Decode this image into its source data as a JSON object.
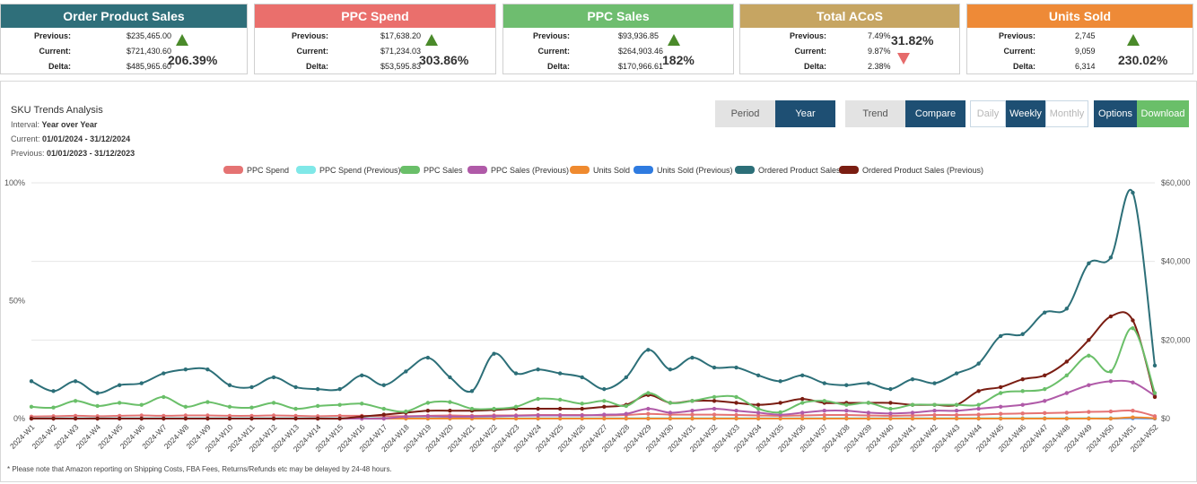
{
  "kpis": [
    {
      "title": "Order Product Sales",
      "color": "#2f6f7a",
      "previous": "$235,465.00",
      "current": "$721,430.60",
      "delta": "$485,965.60",
      "pct": "206.39%",
      "trend": "up"
    },
    {
      "title": "PPC Spend",
      "color": "#ea6f6c",
      "previous": "$17,638.20",
      "current": "$71,234.03",
      "delta": "$53,595.83",
      "pct": "303.86%",
      "trend": "up"
    },
    {
      "title": "PPC Sales",
      "color": "#6ebd6f",
      "previous": "$93,936.85",
      "current": "$264,903.46",
      "delta": "$170,966.61",
      "pct": "182%",
      "trend": "up"
    },
    {
      "title": "Total ACoS",
      "color": "#c6a562",
      "previous": "7.49%",
      "current": "9.87%",
      "delta": "2.38%",
      "pct": "31.82%",
      "trend": "down"
    },
    {
      "title": "Units Sold",
      "color": "#ee8a37",
      "previous": "2,745",
      "current": "9,059",
      "delta": "6,314",
      "pct": "230.02%",
      "trend": "up"
    }
  ],
  "labels": {
    "previous": "Previous:",
    "current": "Current:",
    "delta": "Delta:"
  },
  "panel": {
    "title": "SKU Trends Analysis",
    "interval_label": "Interval:",
    "interval": "Year over Year",
    "current_label": "Current:",
    "current_range": "01/01/2024 - 31/12/2024",
    "previous_label": "Previous:",
    "previous_range": "01/01/2023 - 31/12/2023",
    "note": "* Please note that Amazon reporting on Shipping Costs, FBA Fees, Returns/Refunds etc may be delayed by 24-48 hours."
  },
  "buttons": {
    "period": "Period",
    "year": "Year",
    "trend": "Trend",
    "compare": "Compare",
    "daily": "Daily",
    "weekly": "Weekly",
    "monthly": "Monthly",
    "options": "Options",
    "download": "Download"
  },
  "chart_data": {
    "type": "line",
    "categories": [
      "2024-W1",
      "2024-W2",
      "2024-W3",
      "2024-W4",
      "2024-W5",
      "2024-W6",
      "2024-W7",
      "2024-W8",
      "2024-W9",
      "2024-W10",
      "2024-W11",
      "2024-W12",
      "2024-W13",
      "2024-W14",
      "2024-W15",
      "2024-W16",
      "2024-W17",
      "2024-W18",
      "2024-W19",
      "2024-W20",
      "2024-W21",
      "2024-W22",
      "2024-W23",
      "2024-W24",
      "2024-W25",
      "2024-W26",
      "2024-W27",
      "2024-W28",
      "2024-W29",
      "2024-W30",
      "2024-W31",
      "2024-W32",
      "2024-W33",
      "2024-W34",
      "2024-W35",
      "2024-W36",
      "2024-W37",
      "2024-W38",
      "2024-W39",
      "2024-W40",
      "2024-W41",
      "2024-W42",
      "2024-W43",
      "2024-W44",
      "2024-W45",
      "2024-W46",
      "2024-W47",
      "2024-W48",
      "2024-W49",
      "2024-W50",
      "2024-W51",
      "2024-W52"
    ],
    "y_left": {
      "ticks": [
        "0%",
        "50%",
        "100%"
      ],
      "max": 100
    },
    "y_right": {
      "ticks": [
        "$0",
        "$20,000",
        "$40,000",
        "$60,000"
      ],
      "max": 60000
    },
    "series": [
      {
        "name": "PPC Spend",
        "color": "#e57373",
        "values": [
          500,
          600,
          700,
          600,
          700,
          800,
          700,
          800,
          800,
          700,
          700,
          800,
          700,
          600,
          700,
          700,
          600,
          600,
          700,
          800,
          700,
          800,
          800,
          900,
          900,
          900,
          800,
          900,
          1200,
          1000,
          1000,
          1000,
          900,
          800,
          700,
          800,
          900,
          900,
          800,
          700,
          800,
          900,
          900,
          1000,
          1200,
          1300,
          1400,
          1500,
          1700,
          1800,
          2000,
          600
        ]
      },
      {
        "name": "PPC Spend (Previous)",
        "color": "#80e8e8",
        "values": [
          100,
          100,
          100,
          100,
          100,
          100,
          100,
          100,
          100,
          100,
          100,
          100,
          100,
          100,
          100,
          100,
          100,
          100,
          100,
          100,
          100,
          100,
          100,
          100,
          100,
          100,
          100,
          100,
          100,
          100,
          100,
          100,
          100,
          100,
          100,
          100,
          100,
          100,
          100,
          100,
          100,
          100,
          100,
          100,
          100,
          100,
          100,
          100,
          100,
          100,
          200,
          100
        ]
      },
      {
        "name": "PPC Sales",
        "color": "#6abf69",
        "values": [
          3000,
          2800,
          4500,
          3200,
          4000,
          3500,
          5500,
          3000,
          4200,
          3000,
          2800,
          4000,
          2500,
          3200,
          3500,
          3800,
          2500,
          1800,
          4000,
          4200,
          2500,
          2500,
          3000,
          5000,
          4800,
          3800,
          4500,
          3200,
          6500,
          4000,
          4500,
          5500,
          5500,
          2500,
          1600,
          4000,
          4500,
          3500,
          4000,
          2500,
          3500,
          3500,
          3500,
          3500,
          6500,
          7000,
          7500,
          11000,
          16000,
          12000,
          23000,
          6500
        ]
      },
      {
        "name": "PPC Sales (Previous)",
        "color": "#b05aa8",
        "values": [
          0,
          0,
          0,
          0,
          0,
          0,
          0,
          0,
          0,
          0,
          0,
          0,
          0,
          0,
          0,
          0,
          0,
          500,
          600,
          500,
          500,
          600,
          700,
          800,
          800,
          800,
          1000,
          1200,
          2500,
          1500,
          2000,
          2500,
          2000,
          1500,
          1000,
          1500,
          2000,
          2000,
          1500,
          1300,
          1500,
          2000,
          2000,
          2500,
          3000,
          3500,
          4500,
          6500,
          8500,
          9500,
          9200,
          5800
        ]
      },
      {
        "name": "Units Sold",
        "color": "#ef8a2f",
        "values": [
          0,
          0,
          0,
          0,
          0,
          0,
          0,
          0,
          0,
          0,
          0,
          0,
          0,
          0,
          0,
          0,
          0,
          0,
          0,
          0,
          0,
          0,
          0,
          0,
          0,
          0,
          0,
          0,
          0,
          0,
          0,
          0,
          0,
          0,
          0,
          0,
          0,
          0,
          0,
          0,
          0,
          0,
          0,
          0,
          0,
          0,
          0,
          0,
          0,
          0,
          300,
          100
        ]
      },
      {
        "name": "Units Sold (Previous)",
        "color": "#2f7be0",
        "values": [
          0,
          0,
          0,
          0,
          0,
          0,
          0,
          0,
          0,
          0,
          0,
          0,
          0,
          0,
          0,
          0,
          0,
          0,
          0,
          0,
          0,
          0,
          0,
          0,
          0,
          0,
          0,
          0,
          0,
          0,
          0,
          0,
          0,
          0,
          0,
          0,
          0,
          0,
          0,
          0,
          0,
          0,
          0,
          0,
          0,
          0,
          0,
          0,
          0,
          0,
          100,
          0
        ]
      },
      {
        "name": "Ordered Product Sales",
        "color": "#2c6f78",
        "values": [
          9500,
          7000,
          9500,
          6500,
          8500,
          9000,
          11500,
          12500,
          12500,
          8500,
          8000,
          10500,
          8000,
          7500,
          7500,
          11000,
          8500,
          12000,
          15500,
          10500,
          7000,
          16500,
          11500,
          12500,
          11500,
          10500,
          7500,
          10500,
          17500,
          12500,
          15500,
          13000,
          13000,
          11000,
          9500,
          11000,
          9000,
          8500,
          9000,
          7500,
          10000,
          9000,
          11500,
          14000,
          21000,
          21500,
          27000,
          28000,
          39500,
          41000,
          57500,
          13500
        ]
      },
      {
        "name": "Ordered Product Sales (Previous)",
        "color": "#7a1d12",
        "values": [
          0,
          0,
          0,
          0,
          0,
          0,
          0,
          0,
          0,
          0,
          0,
          0,
          0,
          0,
          0,
          500,
          1000,
          1500,
          2000,
          2000,
          2000,
          2200,
          2500,
          2500,
          2500,
          2500,
          3000,
          3500,
          6000,
          4000,
          4500,
          4500,
          4000,
          3500,
          4000,
          5000,
          4000,
          4000,
          4000,
          4000,
          3500,
          3500,
          3500,
          7000,
          8000,
          10000,
          11000,
          14500,
          20000,
          26000,
          25000,
          5500
        ]
      }
    ]
  }
}
